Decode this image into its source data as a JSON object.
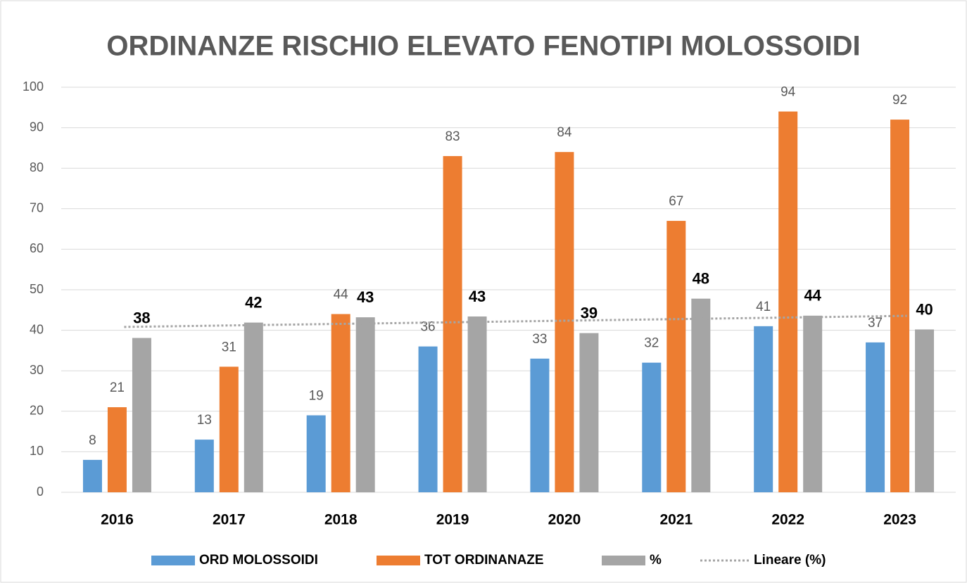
{
  "chart_data": {
    "type": "bar",
    "title": "ORDINANZE RISCHIO ELEVATO FENOTIPI MOLOSSOIDI",
    "categories": [
      "2016",
      "2017",
      "2018",
      "2019",
      "2020",
      "2021",
      "2022",
      "2023"
    ],
    "series": [
      {
        "name": "ORD MOLOSSOIDI",
        "color": "#5b9bd5",
        "values": [
          8,
          13,
          19,
          36,
          33,
          32,
          41,
          37
        ]
      },
      {
        "name": "TOT ORDINANAZE",
        "color": "#ed7d31",
        "values": [
          21,
          31,
          44,
          83,
          84,
          67,
          94,
          92
        ]
      },
      {
        "name": "%",
        "color": "#a5a5a5",
        "values": [
          38.1,
          41.9,
          43.2,
          43.4,
          39.3,
          47.8,
          43.6,
          40.2
        ],
        "value_labels": [
          "38",
          "42",
          "43",
          "43",
          "39",
          "48",
          "44",
          "40"
        ],
        "bold_labels": true
      }
    ],
    "trendline": {
      "name": "Lineare (%)",
      "type": "linear",
      "series": 2,
      "color": "#a5a5a5",
      "style": "dotted"
    },
    "ylim": [
      0,
      100
    ],
    "yticks": [
      0,
      10,
      20,
      30,
      40,
      50,
      60,
      70,
      80,
      90,
      100
    ],
    "grid": true,
    "legend": "bottom"
  }
}
